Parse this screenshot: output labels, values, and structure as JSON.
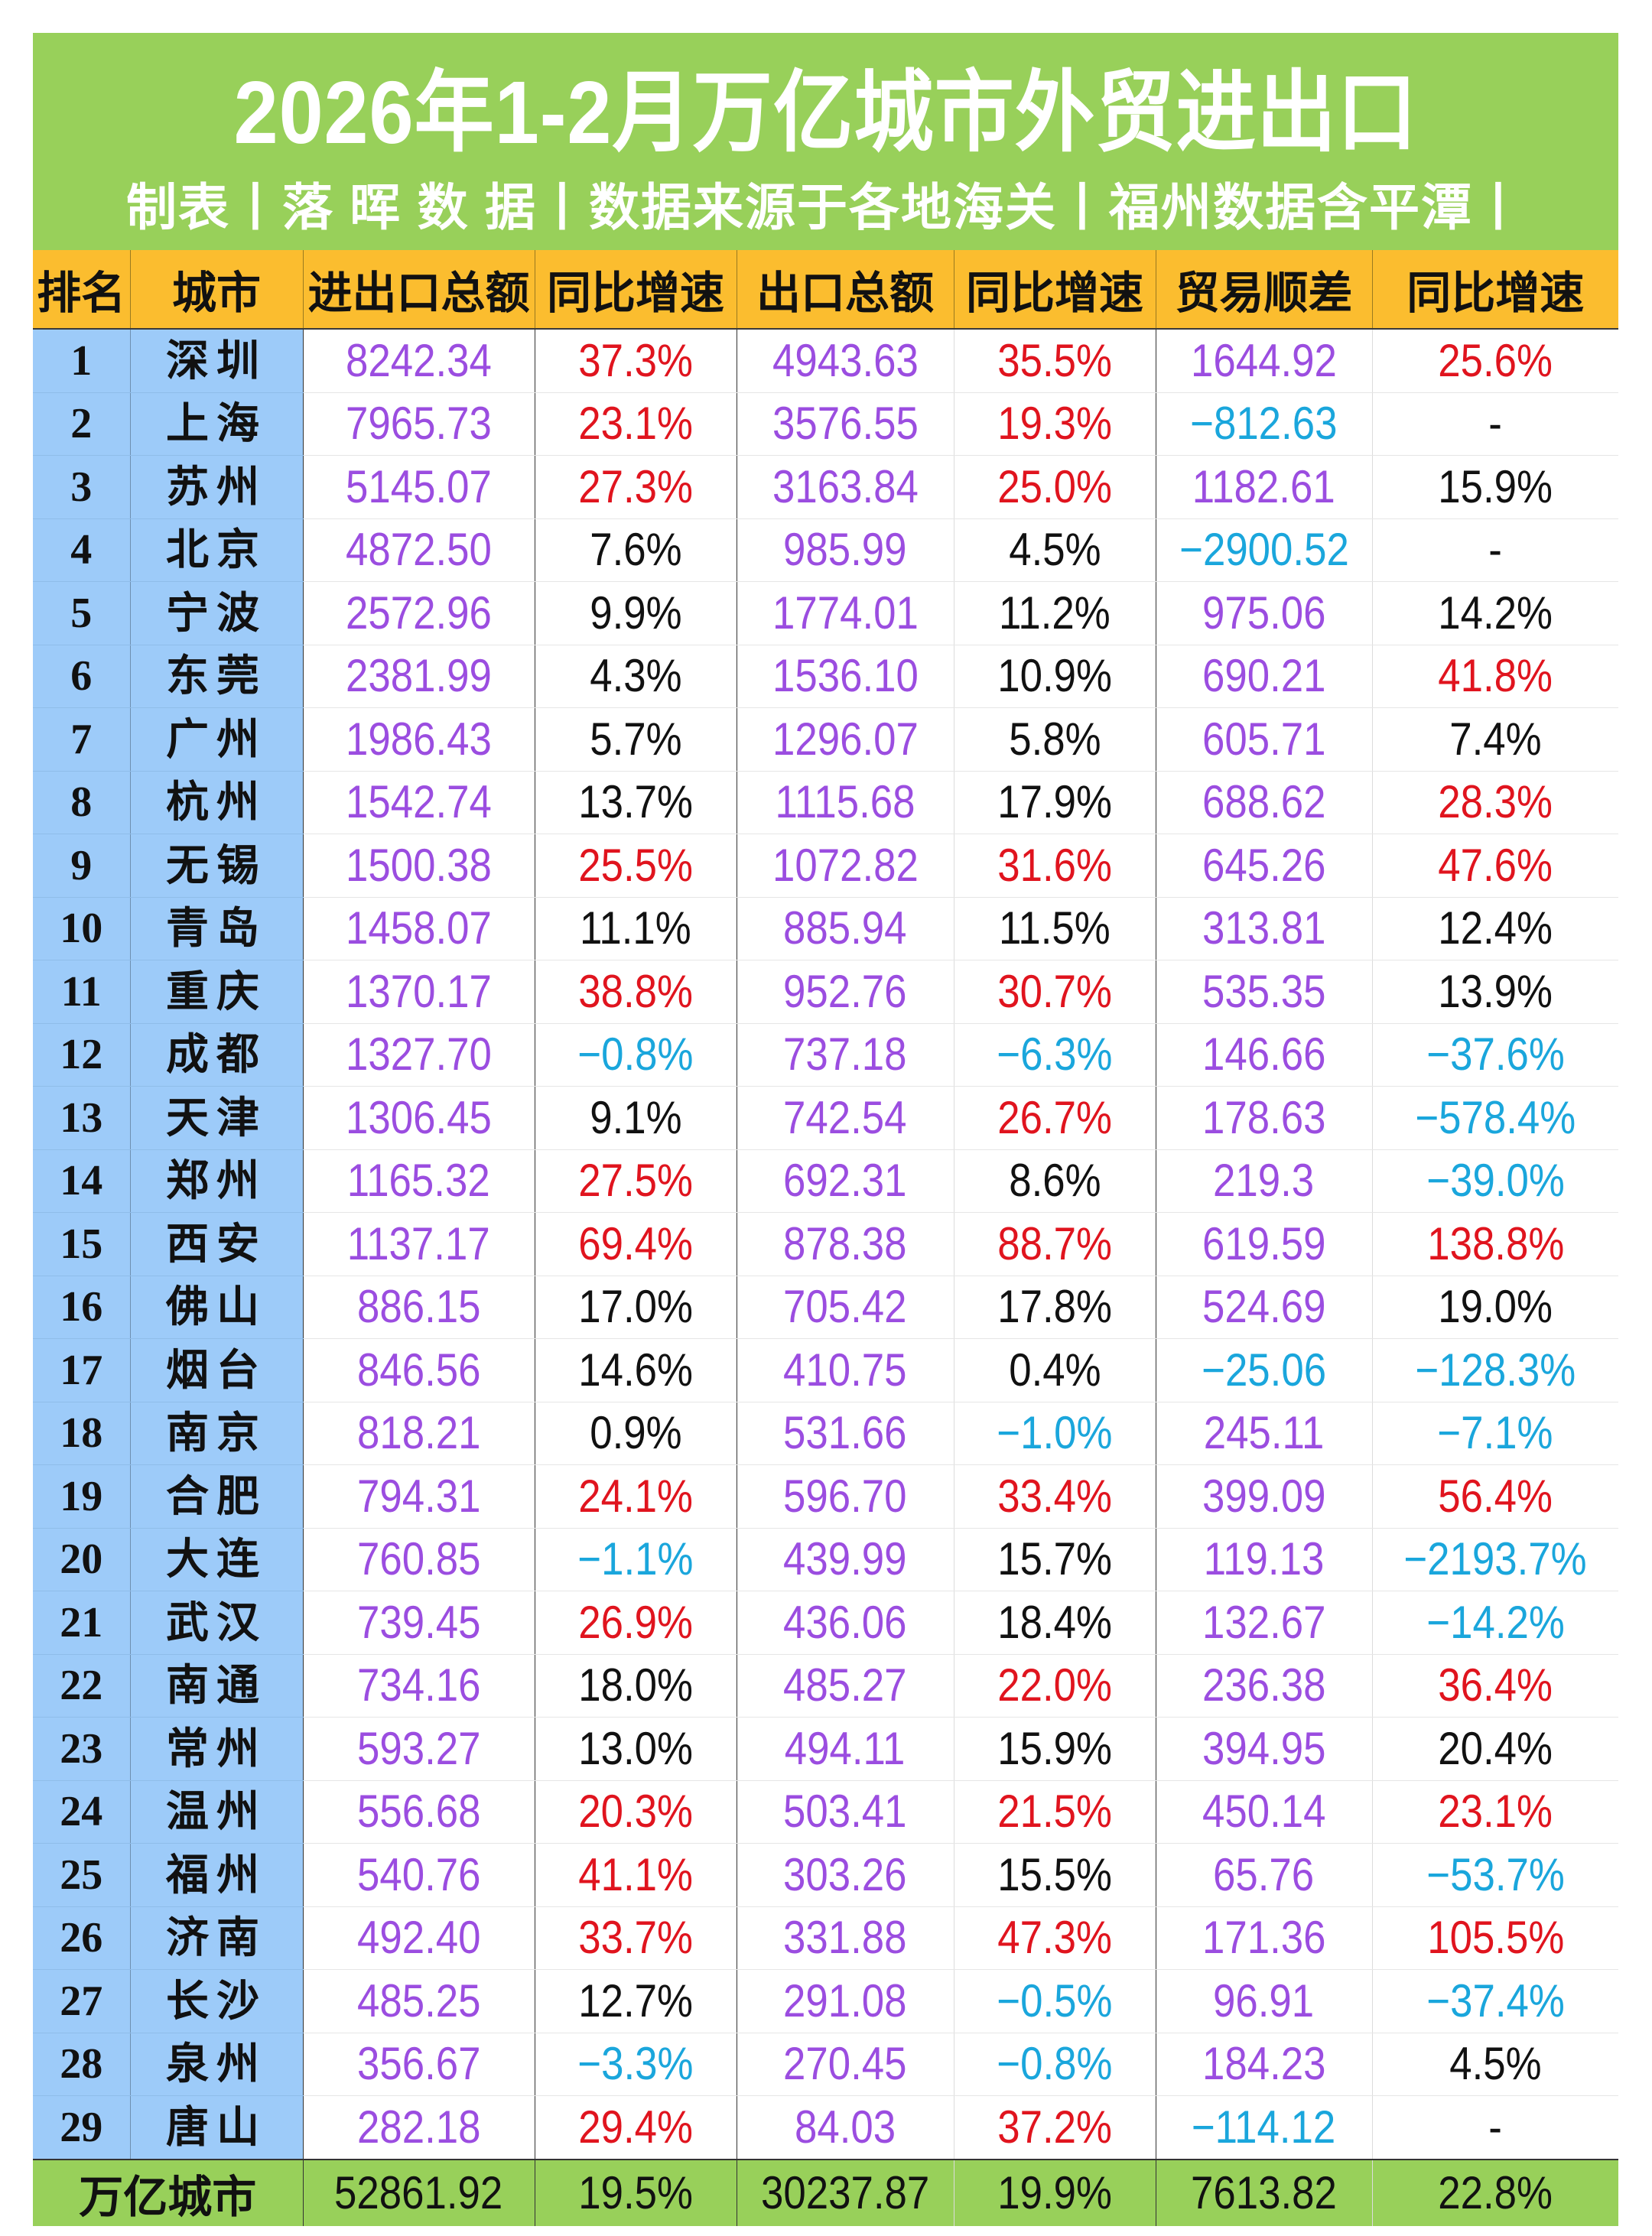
{
  "title": "2026年1-2月万亿城市外贸进出口",
  "subtitle": "制表丨落 晖 数 据丨数据来源于各地海关丨福州数据含平潭丨",
  "colors": {
    "banner_bg": "#98D05A",
    "header_bg": "#FBBD2F",
    "rank_city_bg": "#9DCBF9",
    "value_purple": "#9B4DE0",
    "positive_high_red": "#E0141E",
    "negative_cyan": "#1AA6DC",
    "normal_black": "#111111"
  },
  "table": {
    "headers": [
      "排名",
      "城市",
      "进出口总额",
      "同比增速",
      "出口总额",
      "同比增速",
      "贸易顺差",
      "同比增速"
    ],
    "rows": [
      {
        "rank": "1",
        "city": "深圳",
        "total": "8242.34",
        "total_yoy": "37.3%",
        "total_yoy_c": "red",
        "export": "4943.63",
        "export_yoy": "35.5%",
        "export_yoy_c": "red",
        "surplus": "1644.92",
        "surplus_c": "purple",
        "surplus_yoy": "25.6%",
        "surplus_yoy_c": "red"
      },
      {
        "rank": "2",
        "city": "上海",
        "total": "7965.73",
        "total_yoy": "23.1%",
        "total_yoy_c": "red",
        "export": "3576.55",
        "export_yoy": "19.3%",
        "export_yoy_c": "red",
        "surplus": "−812.63",
        "surplus_c": "cyan",
        "surplus_yoy": "-",
        "surplus_yoy_c": "black"
      },
      {
        "rank": "3",
        "city": "苏州",
        "total": "5145.07",
        "total_yoy": "27.3%",
        "total_yoy_c": "red",
        "export": "3163.84",
        "export_yoy": "25.0%",
        "export_yoy_c": "red",
        "surplus": "1182.61",
        "surplus_c": "purple",
        "surplus_yoy": "15.9%",
        "surplus_yoy_c": "black"
      },
      {
        "rank": "4",
        "city": "北京",
        "total": "4872.50",
        "total_yoy": "7.6%",
        "total_yoy_c": "black",
        "export": "985.99",
        "export_yoy": "4.5%",
        "export_yoy_c": "black",
        "surplus": "−2900.52",
        "surplus_c": "cyan",
        "surplus_yoy": "-",
        "surplus_yoy_c": "black"
      },
      {
        "rank": "5",
        "city": "宁波",
        "total": "2572.96",
        "total_yoy": "9.9%",
        "total_yoy_c": "black",
        "export": "1774.01",
        "export_yoy": "11.2%",
        "export_yoy_c": "black",
        "surplus": "975.06",
        "surplus_c": "purple",
        "surplus_yoy": "14.2%",
        "surplus_yoy_c": "black"
      },
      {
        "rank": "6",
        "city": "东莞",
        "total": "2381.99",
        "total_yoy": "4.3%",
        "total_yoy_c": "black",
        "export": "1536.10",
        "export_yoy": "10.9%",
        "export_yoy_c": "black",
        "surplus": "690.21",
        "surplus_c": "purple",
        "surplus_yoy": "41.8%",
        "surplus_yoy_c": "red"
      },
      {
        "rank": "7",
        "city": "广州",
        "total": "1986.43",
        "total_yoy": "5.7%",
        "total_yoy_c": "black",
        "export": "1296.07",
        "export_yoy": "5.8%",
        "export_yoy_c": "black",
        "surplus": "605.71",
        "surplus_c": "purple",
        "surplus_yoy": "7.4%",
        "surplus_yoy_c": "black"
      },
      {
        "rank": "8",
        "city": "杭州",
        "total": "1542.74",
        "total_yoy": "13.7%",
        "total_yoy_c": "black",
        "export": "1115.68",
        "export_yoy": "17.9%",
        "export_yoy_c": "black",
        "surplus": "688.62",
        "surplus_c": "purple",
        "surplus_yoy": "28.3%",
        "surplus_yoy_c": "red"
      },
      {
        "rank": "9",
        "city": "无锡",
        "total": "1500.38",
        "total_yoy": "25.5%",
        "total_yoy_c": "red",
        "export": "1072.82",
        "export_yoy": "31.6%",
        "export_yoy_c": "red",
        "surplus": "645.26",
        "surplus_c": "purple",
        "surplus_yoy": "47.6%",
        "surplus_yoy_c": "red"
      },
      {
        "rank": "10",
        "city": "青岛",
        "total": "1458.07",
        "total_yoy": "11.1%",
        "total_yoy_c": "black",
        "export": "885.94",
        "export_yoy": "11.5%",
        "export_yoy_c": "black",
        "surplus": "313.81",
        "surplus_c": "purple",
        "surplus_yoy": "12.4%",
        "surplus_yoy_c": "black"
      },
      {
        "rank": "11",
        "city": "重庆",
        "total": "1370.17",
        "total_yoy": "38.8%",
        "total_yoy_c": "red",
        "export": "952.76",
        "export_yoy": "30.7%",
        "export_yoy_c": "red",
        "surplus": "535.35",
        "surplus_c": "purple",
        "surplus_yoy": "13.9%",
        "surplus_yoy_c": "black"
      },
      {
        "rank": "12",
        "city": "成都",
        "total": "1327.70",
        "total_yoy": "−0.8%",
        "total_yoy_c": "cyan",
        "export": "737.18",
        "export_yoy": "−6.3%",
        "export_yoy_c": "cyan",
        "surplus": "146.66",
        "surplus_c": "purple",
        "surplus_yoy": "−37.6%",
        "surplus_yoy_c": "cyan"
      },
      {
        "rank": "13",
        "city": "天津",
        "total": "1306.45",
        "total_yoy": "9.1%",
        "total_yoy_c": "black",
        "export": "742.54",
        "export_yoy": "26.7%",
        "export_yoy_c": "red",
        "surplus": "178.63",
        "surplus_c": "purple",
        "surplus_yoy": "−578.4%",
        "surplus_yoy_c": "cyan"
      },
      {
        "rank": "14",
        "city": "郑州",
        "total": "1165.32",
        "total_yoy": "27.5%",
        "total_yoy_c": "red",
        "export": "692.31",
        "export_yoy": "8.6%",
        "export_yoy_c": "black",
        "surplus": "219.3",
        "surplus_c": "purple",
        "surplus_yoy": "−39.0%",
        "surplus_yoy_c": "cyan"
      },
      {
        "rank": "15",
        "city": "西安",
        "total": "1137.17",
        "total_yoy": "69.4%",
        "total_yoy_c": "red",
        "export": "878.38",
        "export_yoy": "88.7%",
        "export_yoy_c": "red",
        "surplus": "619.59",
        "surplus_c": "purple",
        "surplus_yoy": "138.8%",
        "surplus_yoy_c": "red"
      },
      {
        "rank": "16",
        "city": "佛山",
        "total": "886.15",
        "total_yoy": "17.0%",
        "total_yoy_c": "black",
        "export": "705.42",
        "export_yoy": "17.8%",
        "export_yoy_c": "black",
        "surplus": "524.69",
        "surplus_c": "purple",
        "surplus_yoy": "19.0%",
        "surplus_yoy_c": "black"
      },
      {
        "rank": "17",
        "city": "烟台",
        "total": "846.56",
        "total_yoy": "14.6%",
        "total_yoy_c": "black",
        "export": "410.75",
        "export_yoy": "0.4%",
        "export_yoy_c": "black",
        "surplus": "−25.06",
        "surplus_c": "cyan",
        "surplus_yoy": "−128.3%",
        "surplus_yoy_c": "cyan"
      },
      {
        "rank": "18",
        "city": "南京",
        "total": "818.21",
        "total_yoy": "0.9%",
        "total_yoy_c": "black",
        "export": "531.66",
        "export_yoy": "−1.0%",
        "export_yoy_c": "cyan",
        "surplus": "245.11",
        "surplus_c": "purple",
        "surplus_yoy": "−7.1%",
        "surplus_yoy_c": "cyan"
      },
      {
        "rank": "19",
        "city": "合肥",
        "total": "794.31",
        "total_yoy": "24.1%",
        "total_yoy_c": "red",
        "export": "596.70",
        "export_yoy": "33.4%",
        "export_yoy_c": "red",
        "surplus": "399.09",
        "surplus_c": "purple",
        "surplus_yoy": "56.4%",
        "surplus_yoy_c": "red"
      },
      {
        "rank": "20",
        "city": "大连",
        "total": "760.85",
        "total_yoy": "−1.1%",
        "total_yoy_c": "cyan",
        "export": "439.99",
        "export_yoy": "15.7%",
        "export_yoy_c": "black",
        "surplus": "119.13",
        "surplus_c": "purple",
        "surplus_yoy": "−2193.7%",
        "surplus_yoy_c": "cyan"
      },
      {
        "rank": "21",
        "city": "武汉",
        "total": "739.45",
        "total_yoy": "26.9%",
        "total_yoy_c": "red",
        "export": "436.06",
        "export_yoy": "18.4%",
        "export_yoy_c": "black",
        "surplus": "132.67",
        "surplus_c": "purple",
        "surplus_yoy": "−14.2%",
        "surplus_yoy_c": "cyan"
      },
      {
        "rank": "22",
        "city": "南通",
        "total": "734.16",
        "total_yoy": "18.0%",
        "total_yoy_c": "black",
        "export": "485.27",
        "export_yoy": "22.0%",
        "export_yoy_c": "red",
        "surplus": "236.38",
        "surplus_c": "purple",
        "surplus_yoy": "36.4%",
        "surplus_yoy_c": "red"
      },
      {
        "rank": "23",
        "city": "常州",
        "total": "593.27",
        "total_yoy": "13.0%",
        "total_yoy_c": "black",
        "export": "494.11",
        "export_yoy": "15.9%",
        "export_yoy_c": "black",
        "surplus": "394.95",
        "surplus_c": "purple",
        "surplus_yoy": "20.4%",
        "surplus_yoy_c": "black"
      },
      {
        "rank": "24",
        "city": "温州",
        "total": "556.68",
        "total_yoy": "20.3%",
        "total_yoy_c": "red",
        "export": "503.41",
        "export_yoy": "21.5%",
        "export_yoy_c": "red",
        "surplus": "450.14",
        "surplus_c": "purple",
        "surplus_yoy": "23.1%",
        "surplus_yoy_c": "red"
      },
      {
        "rank": "25",
        "city": "福州",
        "total": "540.76",
        "total_yoy": "41.1%",
        "total_yoy_c": "red",
        "export": "303.26",
        "export_yoy": "15.5%",
        "export_yoy_c": "black",
        "surplus": "65.76",
        "surplus_c": "purple",
        "surplus_yoy": "−53.7%",
        "surplus_yoy_c": "cyan"
      },
      {
        "rank": "26",
        "city": "济南",
        "total": "492.40",
        "total_yoy": "33.7%",
        "total_yoy_c": "red",
        "export": "331.88",
        "export_yoy": "47.3%",
        "export_yoy_c": "red",
        "surplus": "171.36",
        "surplus_c": "purple",
        "surplus_yoy": "105.5%",
        "surplus_yoy_c": "red"
      },
      {
        "rank": "27",
        "city": "长沙",
        "total": "485.25",
        "total_yoy": "12.7%",
        "total_yoy_c": "black",
        "export": "291.08",
        "export_yoy": "−0.5%",
        "export_yoy_c": "cyan",
        "surplus": "96.91",
        "surplus_c": "purple",
        "surplus_yoy": "−37.4%",
        "surplus_yoy_c": "cyan"
      },
      {
        "rank": "28",
        "city": "泉州",
        "total": "356.67",
        "total_yoy": "−3.3%",
        "total_yoy_c": "cyan",
        "export": "270.45",
        "export_yoy": "−0.8%",
        "export_yoy_c": "cyan",
        "surplus": "184.23",
        "surplus_c": "purple",
        "surplus_yoy": "4.5%",
        "surplus_yoy_c": "black"
      },
      {
        "rank": "29",
        "city": "唐山",
        "total": "282.18",
        "total_yoy": "29.4%",
        "total_yoy_c": "red",
        "export": "84.03",
        "export_yoy": "37.2%",
        "export_yoy_c": "red",
        "surplus": "−114.12",
        "surplus_c": "cyan",
        "surplus_yoy": "-",
        "surplus_yoy_c": "black"
      }
    ],
    "total_row": {
      "label": "万亿城市",
      "total": "52861.92",
      "total_yoy": "19.5%",
      "export": "30237.87",
      "export_yoy": "19.9%",
      "surplus": "7613.82",
      "surplus_yoy": "22.8%"
    }
  }
}
